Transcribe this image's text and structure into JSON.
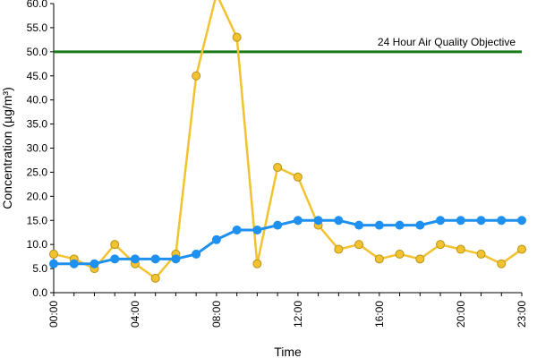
{
  "chart_data": {
    "type": "line",
    "title": "",
    "xlabel": "Time",
    "ylabel": "Concentration (µg/m³)",
    "x": [
      0,
      1,
      2,
      3,
      4,
      5,
      6,
      7,
      8,
      9,
      10,
      11,
      12,
      13,
      14,
      15,
      16,
      17,
      18,
      19,
      20,
      21,
      22,
      23
    ],
    "x_tick_labels": [
      "00:00",
      "04:00",
      "08:00",
      "12:00",
      "16:00",
      "20:00",
      "23:00"
    ],
    "x_tick_values": [
      0,
      4,
      8,
      12,
      16,
      20,
      23
    ],
    "y_tick_labels": [
      "0.0",
      "5.0",
      "10.0",
      "15.0",
      "20.0",
      "25.0",
      "30.0",
      "35.0",
      "40.0",
      "45.0",
      "50.0",
      "55.0",
      "60.0"
    ],
    "ylim": [
      0,
      60
    ],
    "grid": false,
    "series": [
      {
        "color": "#f2c230",
        "marker_fill": "#f2c230",
        "marker_stroke": "#b99418",
        "values": [
          8,
          7,
          5,
          10,
          6,
          3,
          8,
          45,
          62,
          53,
          6,
          26,
          24,
          14,
          9,
          10,
          7,
          8,
          7,
          10,
          9,
          8,
          6,
          9
        ]
      },
      {
        "color": "#1e90f0",
        "marker_fill": "#1e90f0",
        "marker_stroke": "#1e90f0",
        "values": [
          6,
          6,
          6,
          7,
          7,
          7,
          7,
          8,
          11,
          13,
          13,
          14,
          15,
          15,
          15,
          14,
          14,
          14,
          14,
          15,
          15,
          15,
          15,
          15
        ]
      }
    ],
    "reference_line": {
      "value": 50,
      "label": "24 Hour Air Quality Objective",
      "color": "#1a7a1a"
    }
  }
}
